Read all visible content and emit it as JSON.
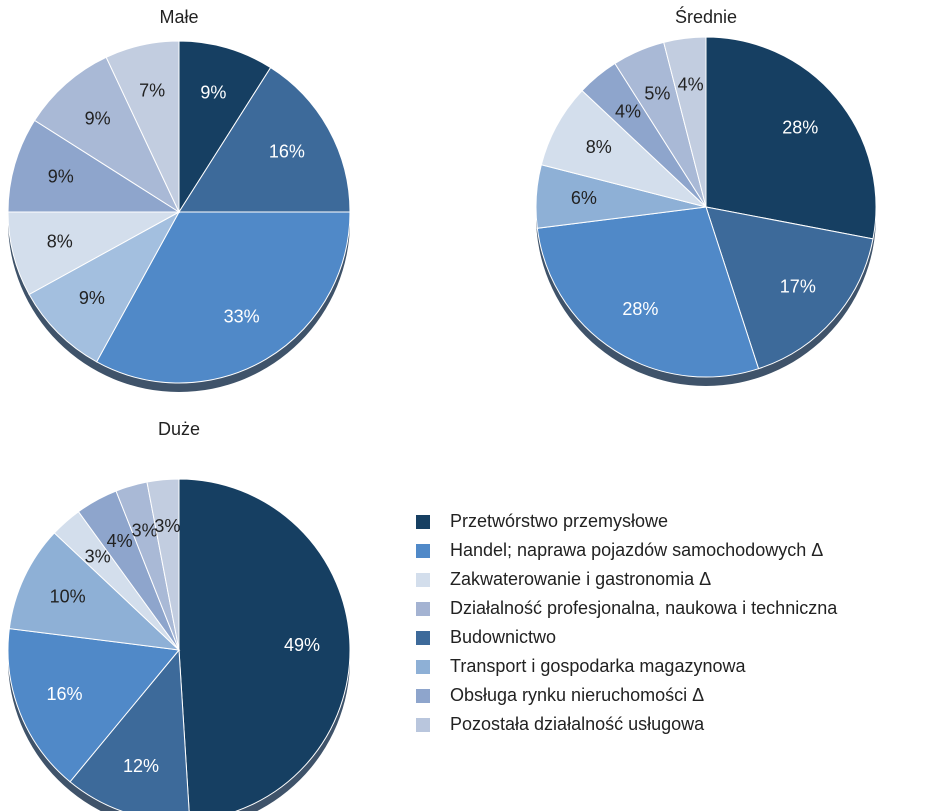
{
  "chart_data": [
    {
      "type": "pie",
      "title": "Małe",
      "values": [
        9,
        16,
        33,
        9,
        8,
        9,
        9,
        7
      ],
      "value_labels": [
        "9%",
        "16%",
        "33%",
        "9%",
        "8%",
        "9%",
        "9%",
        "7%"
      ],
      "colors": [
        "#163f62",
        "#3d6a9a",
        "#5089c8",
        "#a3bfdf",
        "#d3deec",
        "#8ea5cc",
        "#a9b9d6",
        "#c2cde0"
      ]
    },
    {
      "type": "pie",
      "title": "Średnie",
      "values": [
        28,
        17,
        28,
        6,
        8,
        4,
        5,
        4
      ],
      "value_labels": [
        "28%",
        "17%",
        "28%",
        "6%",
        "8%",
        "4%",
        "5%",
        "4%"
      ],
      "colors": [
        "#163f62",
        "#3d6a9a",
        "#5089c8",
        "#8eb0d6",
        "#d3deec",
        "#8ea5cc",
        "#a9b9d6",
        "#c2cde0"
      ]
    },
    {
      "type": "pie",
      "title": "Duże",
      "values": [
        49,
        12,
        16,
        10,
        3,
        4,
        3,
        3
      ],
      "value_labels": [
        "49%",
        "12%",
        "16%",
        "10%",
        "3%",
        "4%",
        "3%",
        "3%"
      ],
      "colors": [
        "#163f62",
        "#3d6a9a",
        "#5089c8",
        "#8eb0d6",
        "#d3deec",
        "#8ea5cc",
        "#a9b9d6",
        "#c2cde0"
      ]
    }
  ],
  "legend": {
    "labels": [
      "Przetwórstwo przemysłowe",
      "Handel; naprawa pojazdów samochodowych Δ",
      "Zakwaterowanie i gastronomia Δ",
      "Działalność profesjonalna, naukowa i techniczna",
      "Budownictwo",
      "Transport i gospodarka magazynowa",
      "Obsługa rynku nieruchomości Δ",
      "Pozostała działalność usługowa"
    ],
    "colors": [
      "#163f62",
      "#5089c8",
      "#d3deec",
      "#a4b3d2",
      "#3d6a9a",
      "#8eb0d6",
      "#8ea5cc",
      "#b9c6dd"
    ]
  }
}
